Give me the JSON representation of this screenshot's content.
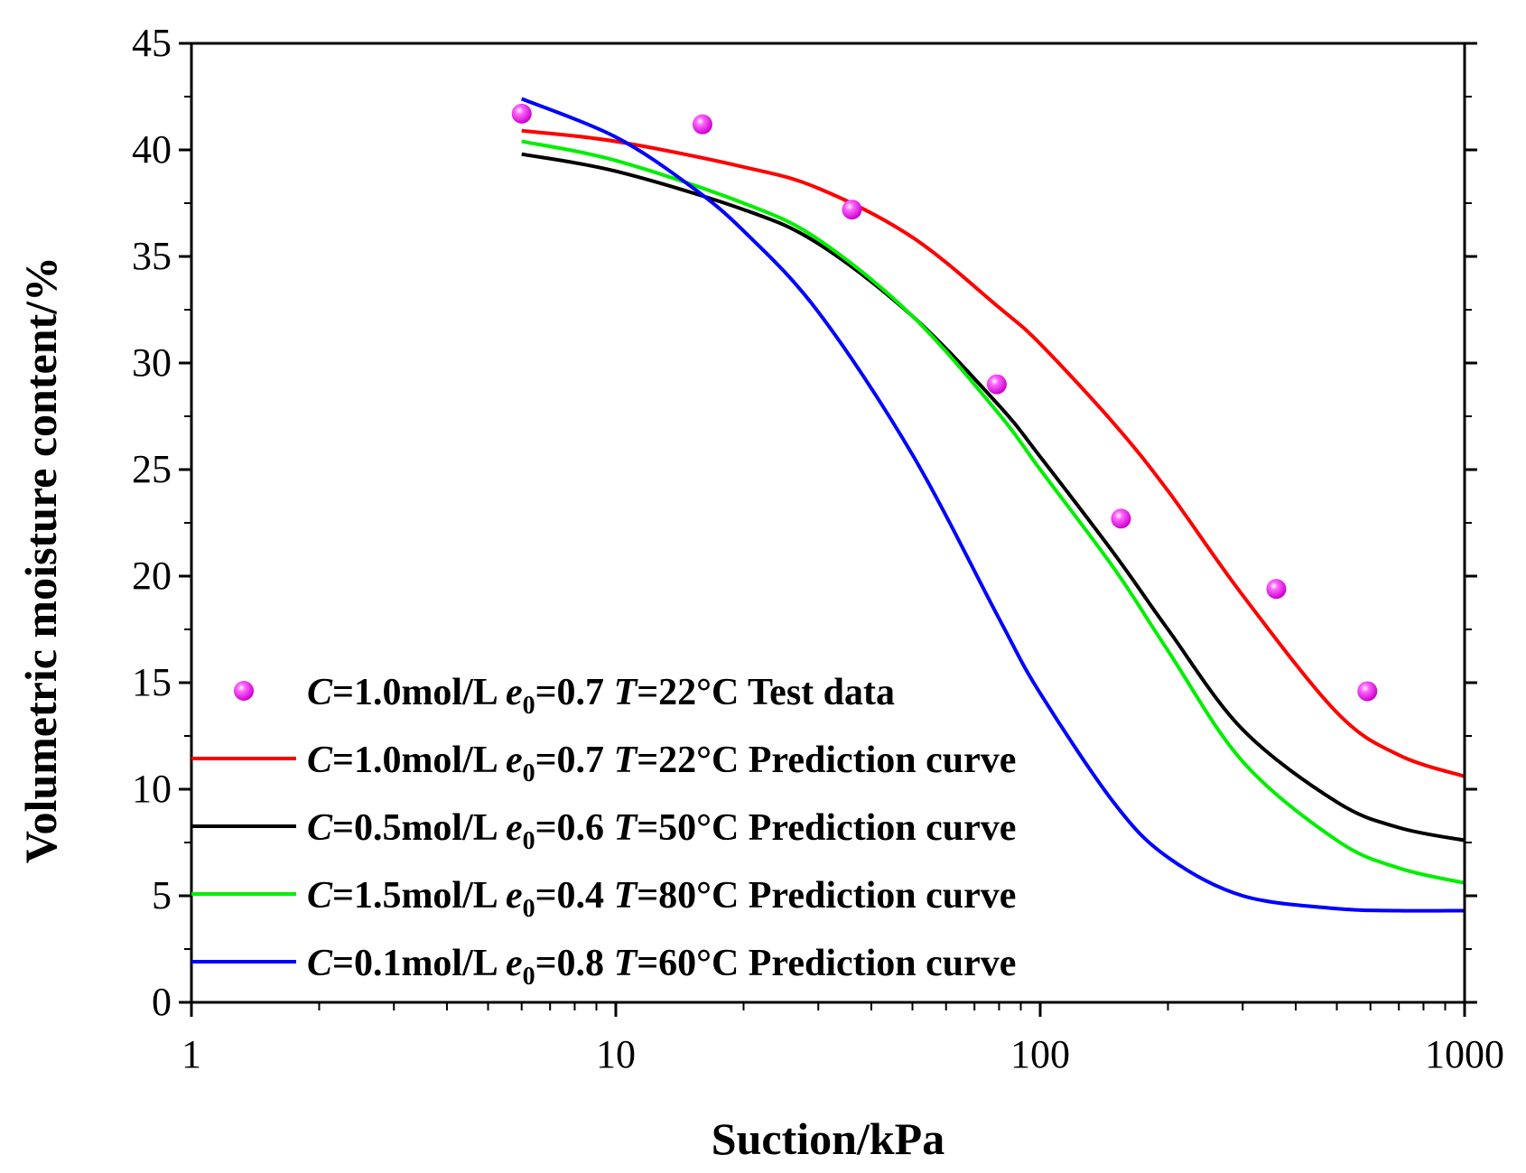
{
  "chart_data": {
    "type": "line",
    "xscale": "log",
    "xlabel": "Suction/kPa",
    "ylabel": "Volumetric moisture content/%",
    "xlim": [
      1,
      1000
    ],
    "ylim": [
      0,
      45
    ],
    "xticks": [
      1,
      10,
      100,
      1000
    ],
    "xtick_labels": [
      "1",
      "10",
      "100",
      "1000"
    ],
    "yticks": [
      0,
      5,
      10,
      15,
      20,
      25,
      30,
      35,
      40,
      45
    ],
    "ytick_labels": [
      "0",
      "5",
      "10",
      "15",
      "20",
      "25",
      "30",
      "35",
      "40",
      "45"
    ],
    "legend_position": "lower-left",
    "test_data": {
      "label_parts": {
        "c_sym": "C",
        "c_val": "=1.0mol/L ",
        "e_sym": "e",
        "e_sub": "0",
        "e_val": "=0.7 ",
        "t_sym": "T",
        "t_val": "=22°C Test data"
      },
      "color": "#ff00ff",
      "x": [
        6.0,
        16.0,
        36.0,
        79.0,
        155.0,
        360.0,
        590.0
      ],
      "y": [
        41.7,
        41.2,
        37.2,
        29.0,
        22.7,
        19.4,
        14.6
      ]
    },
    "series": [
      {
        "name": "C=1.0mol/L e0=0.7 T=22°C Prediction curve",
        "label_parts": {
          "c_sym": "C",
          "c_val": "=1.0mol/L ",
          "e_sym": "e",
          "e_sub": "0",
          "e_val": "=0.7 ",
          "t_sym": "T",
          "t_val": "=22°C Prediction curve"
        },
        "color": "#ff0000",
        "x": [
          6,
          10,
          20,
          30,
          50,
          80,
          100,
          150,
          200,
          300,
          500,
          700,
          1000
        ],
        "y": [
          40.9,
          40.4,
          39.2,
          38.2,
          35.9,
          32.6,
          30.9,
          27.1,
          24.0,
          19.1,
          13.6,
          11.6,
          10.6
        ]
      },
      {
        "name": "C=0.5mol/L e0=0.6 T=50°C Prediction curve",
        "label_parts": {
          "c_sym": "C",
          "c_val": "=0.5mol/L ",
          "e_sym": "e",
          "e_sub": "0",
          "e_val": "=0.6 ",
          "t_sym": "T",
          "t_val": "=50°C Prediction curve"
        },
        "color": "#000000",
        "x": [
          6,
          10,
          20,
          30,
          50,
          80,
          100,
          150,
          200,
          300,
          500,
          700,
          1000
        ],
        "y": [
          39.8,
          39.0,
          37.2,
          35.6,
          32.2,
          28.0,
          25.6,
          21.0,
          17.5,
          12.8,
          9.4,
          8.2,
          7.6
        ]
      },
      {
        "name": "C=1.5mol/L e0=0.4 T=80°C Prediction curve",
        "label_parts": {
          "c_sym": "C",
          "c_val": "=1.5mol/L ",
          "e_sym": "e",
          "e_sub": "0",
          "e_val": "=0.4 ",
          "t_sym": "T",
          "t_val": "=80°C Prediction curve"
        },
        "color": "#00ee00",
        "x": [
          6,
          10,
          20,
          30,
          50,
          80,
          100,
          150,
          200,
          300,
          500,
          700,
          1000
        ],
        "y": [
          40.4,
          39.5,
          37.5,
          35.8,
          32.2,
          27.6,
          25.0,
          20.3,
          16.5,
          11.3,
          7.6,
          6.3,
          5.6
        ]
      },
      {
        "name": "C=0.1mol/L e0=0.8 T=60°C Prediction curve",
        "label_parts": {
          "c_sym": "C",
          "c_val": "=0.1mol/L ",
          "e_sym": "e",
          "e_sub": "0",
          "e_val": "=0.8 ",
          "t_sym": "T",
          "t_val": "=60°C Prediction curve"
        },
        "color": "#0000ff",
        "x": [
          6,
          10,
          15,
          20,
          30,
          50,
          80,
          100,
          150,
          200,
          300,
          500,
          700,
          1000
        ],
        "y": [
          42.4,
          40.6,
          38.3,
          36.2,
          32.4,
          25.7,
          18.0,
          14.5,
          9.3,
          6.8,
          5.0,
          4.4,
          4.3,
          4.3
        ]
      }
    ]
  }
}
